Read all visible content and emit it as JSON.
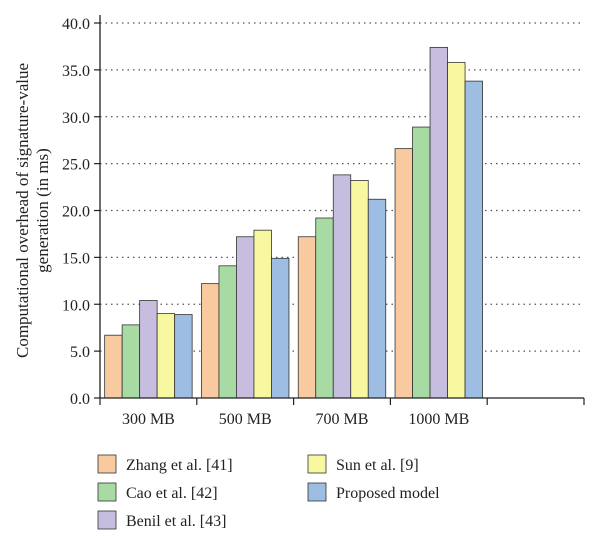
{
  "chart_data": {
    "type": "bar",
    "title": "",
    "xlabel": "",
    "ylabel": "Computational overhead of signature-value generation (in ms)",
    "ylabel_lines": [
      "Computational overhead of signature-value",
      "generation (in ms)"
    ],
    "ylim": [
      0,
      40
    ],
    "yticks": [
      "0.0",
      "5.0",
      "10.0",
      "15.0",
      "20.0",
      "25.0",
      "30.0",
      "35.0",
      "40.0"
    ],
    "grid": "horizontal dashed",
    "legend_position": "bottom",
    "categories": [
      "300 MB",
      "500 MB",
      "700 MB",
      "1000 MB"
    ],
    "series": [
      {
        "name": "Zhang et al. [41]",
        "color": "#f9c9a0",
        "values": [
          6.7,
          12.2,
          17.2,
          26.6
        ]
      },
      {
        "name": "Cao et al. [42]",
        "color": "#a8dba4",
        "values": [
          7.8,
          14.1,
          19.2,
          28.9
        ]
      },
      {
        "name": "Benil et al. [43]",
        "color": "#c7bedf",
        "values": [
          10.4,
          17.2,
          23.8,
          37.4
        ]
      },
      {
        "name": "Sun et al. [9]",
        "color": "#f8f8a0",
        "values": [
          9.0,
          17.9,
          23.2,
          35.8
        ]
      },
      {
        "name": "Proposed model",
        "color": "#9dbde2",
        "values": [
          8.9,
          14.9,
          21.2,
          33.8
        ]
      }
    ]
  }
}
